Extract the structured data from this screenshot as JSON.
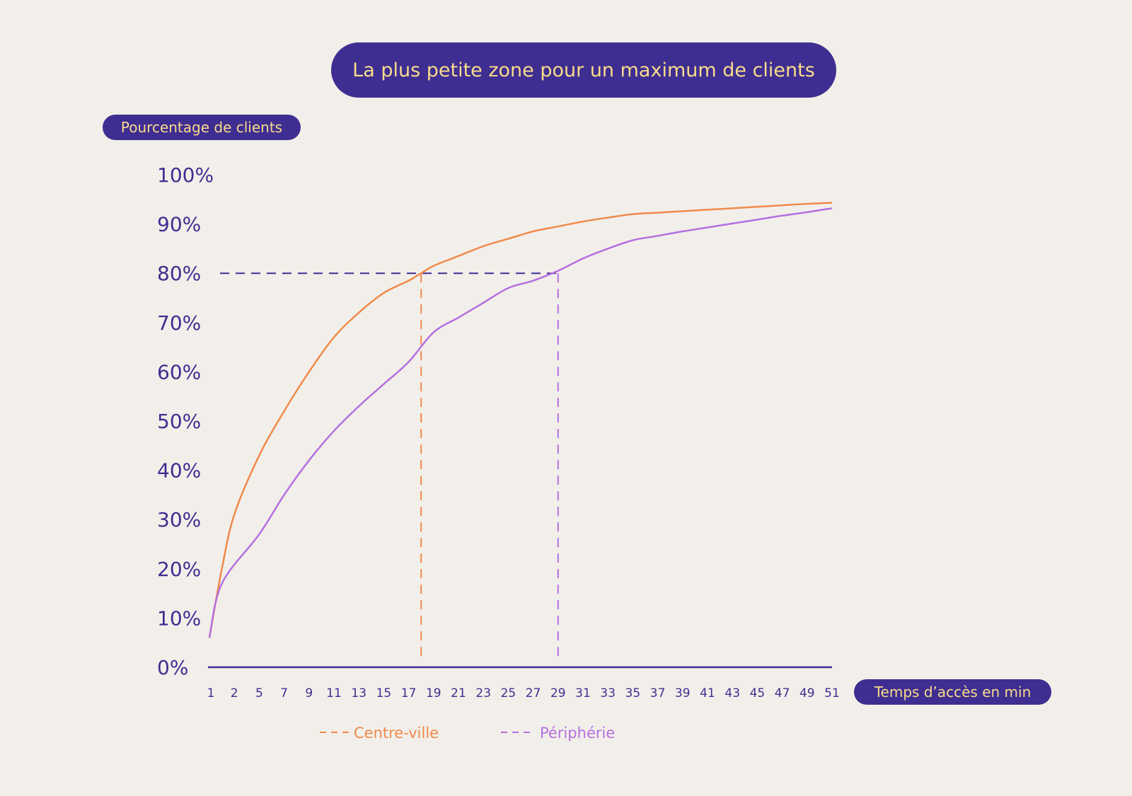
{
  "colors": {
    "background": "#f2efea",
    "accent": "#3f2e91",
    "pill_text": "#f8dc8c",
    "centre": "#f08a4b",
    "peripherie": "#b56fe0"
  },
  "chart_data": {
    "type": "line",
    "title": "La plus petite zone pour un maximum de clients",
    "ylabel": "Pourcentage de clients",
    "xlabel": "Temps d’accès en min",
    "x_ticks": [
      "1",
      "2",
      "5",
      "7",
      "9",
      "11",
      "13",
      "15",
      "17",
      "19",
      "21",
      "23",
      "25",
      "27",
      "29",
      "31",
      "33",
      "35",
      "37",
      "39",
      "41",
      "43",
      "45",
      "47",
      "49",
      "51"
    ],
    "y_ticks": [
      "0%",
      "10%",
      "20%",
      "30%",
      "40%",
      "50%",
      "60%",
      "70%",
      "80%",
      "90%",
      "100%"
    ],
    "ylim": [
      0,
      100
    ],
    "series": [
      {
        "name": "Centre-ville",
        "color": "#f08a4b",
        "points": [
          [
            1,
            6
          ],
          [
            2,
            20
          ],
          [
            3,
            31
          ],
          [
            5,
            43
          ],
          [
            7,
            52
          ],
          [
            9,
            60
          ],
          [
            11,
            67
          ],
          [
            13,
            72
          ],
          [
            15,
            76
          ],
          [
            17,
            78.5
          ],
          [
            18,
            80
          ],
          [
            19,
            81.5
          ],
          [
            21,
            83.5
          ],
          [
            23,
            85.5
          ],
          [
            25,
            87
          ],
          [
            27,
            88.5
          ],
          [
            29,
            89.5
          ],
          [
            31,
            90.5
          ],
          [
            33,
            91.3
          ],
          [
            35,
            92
          ],
          [
            37,
            92.3
          ],
          [
            39,
            92.6
          ],
          [
            41,
            92.9
          ],
          [
            43,
            93.2
          ],
          [
            45,
            93.5
          ],
          [
            47,
            93.8
          ],
          [
            49,
            94.1
          ],
          [
            51,
            94.3
          ]
        ]
      },
      {
        "name": "Périphérie",
        "color": "#b56fe0",
        "points": [
          [
            1,
            6
          ],
          [
            2,
            17
          ],
          [
            5,
            27
          ],
          [
            7,
            35
          ],
          [
            9,
            42
          ],
          [
            11,
            48
          ],
          [
            13,
            53
          ],
          [
            15,
            57.5
          ],
          [
            17,
            62
          ],
          [
            19,
            68
          ],
          [
            21,
            71
          ],
          [
            23,
            74
          ],
          [
            25,
            77
          ],
          [
            27,
            78.5
          ],
          [
            29,
            80.5
          ],
          [
            31,
            83
          ],
          [
            33,
            85
          ],
          [
            35,
            86.7
          ],
          [
            37,
            87.6
          ],
          [
            39,
            88.5
          ],
          [
            41,
            89.3
          ],
          [
            43,
            90.1
          ],
          [
            45,
            90.9
          ],
          [
            47,
            91.7
          ],
          [
            49,
            92.4
          ],
          [
            51,
            93.2
          ]
        ]
      }
    ],
    "reference_lines": {
      "horizontal_y": 80,
      "verticals": [
        {
          "series": "Centre-ville",
          "x": 18
        },
        {
          "series": "Périphérie",
          "x": 29
        }
      ]
    },
    "grid": false,
    "legend_position": "bottom"
  }
}
